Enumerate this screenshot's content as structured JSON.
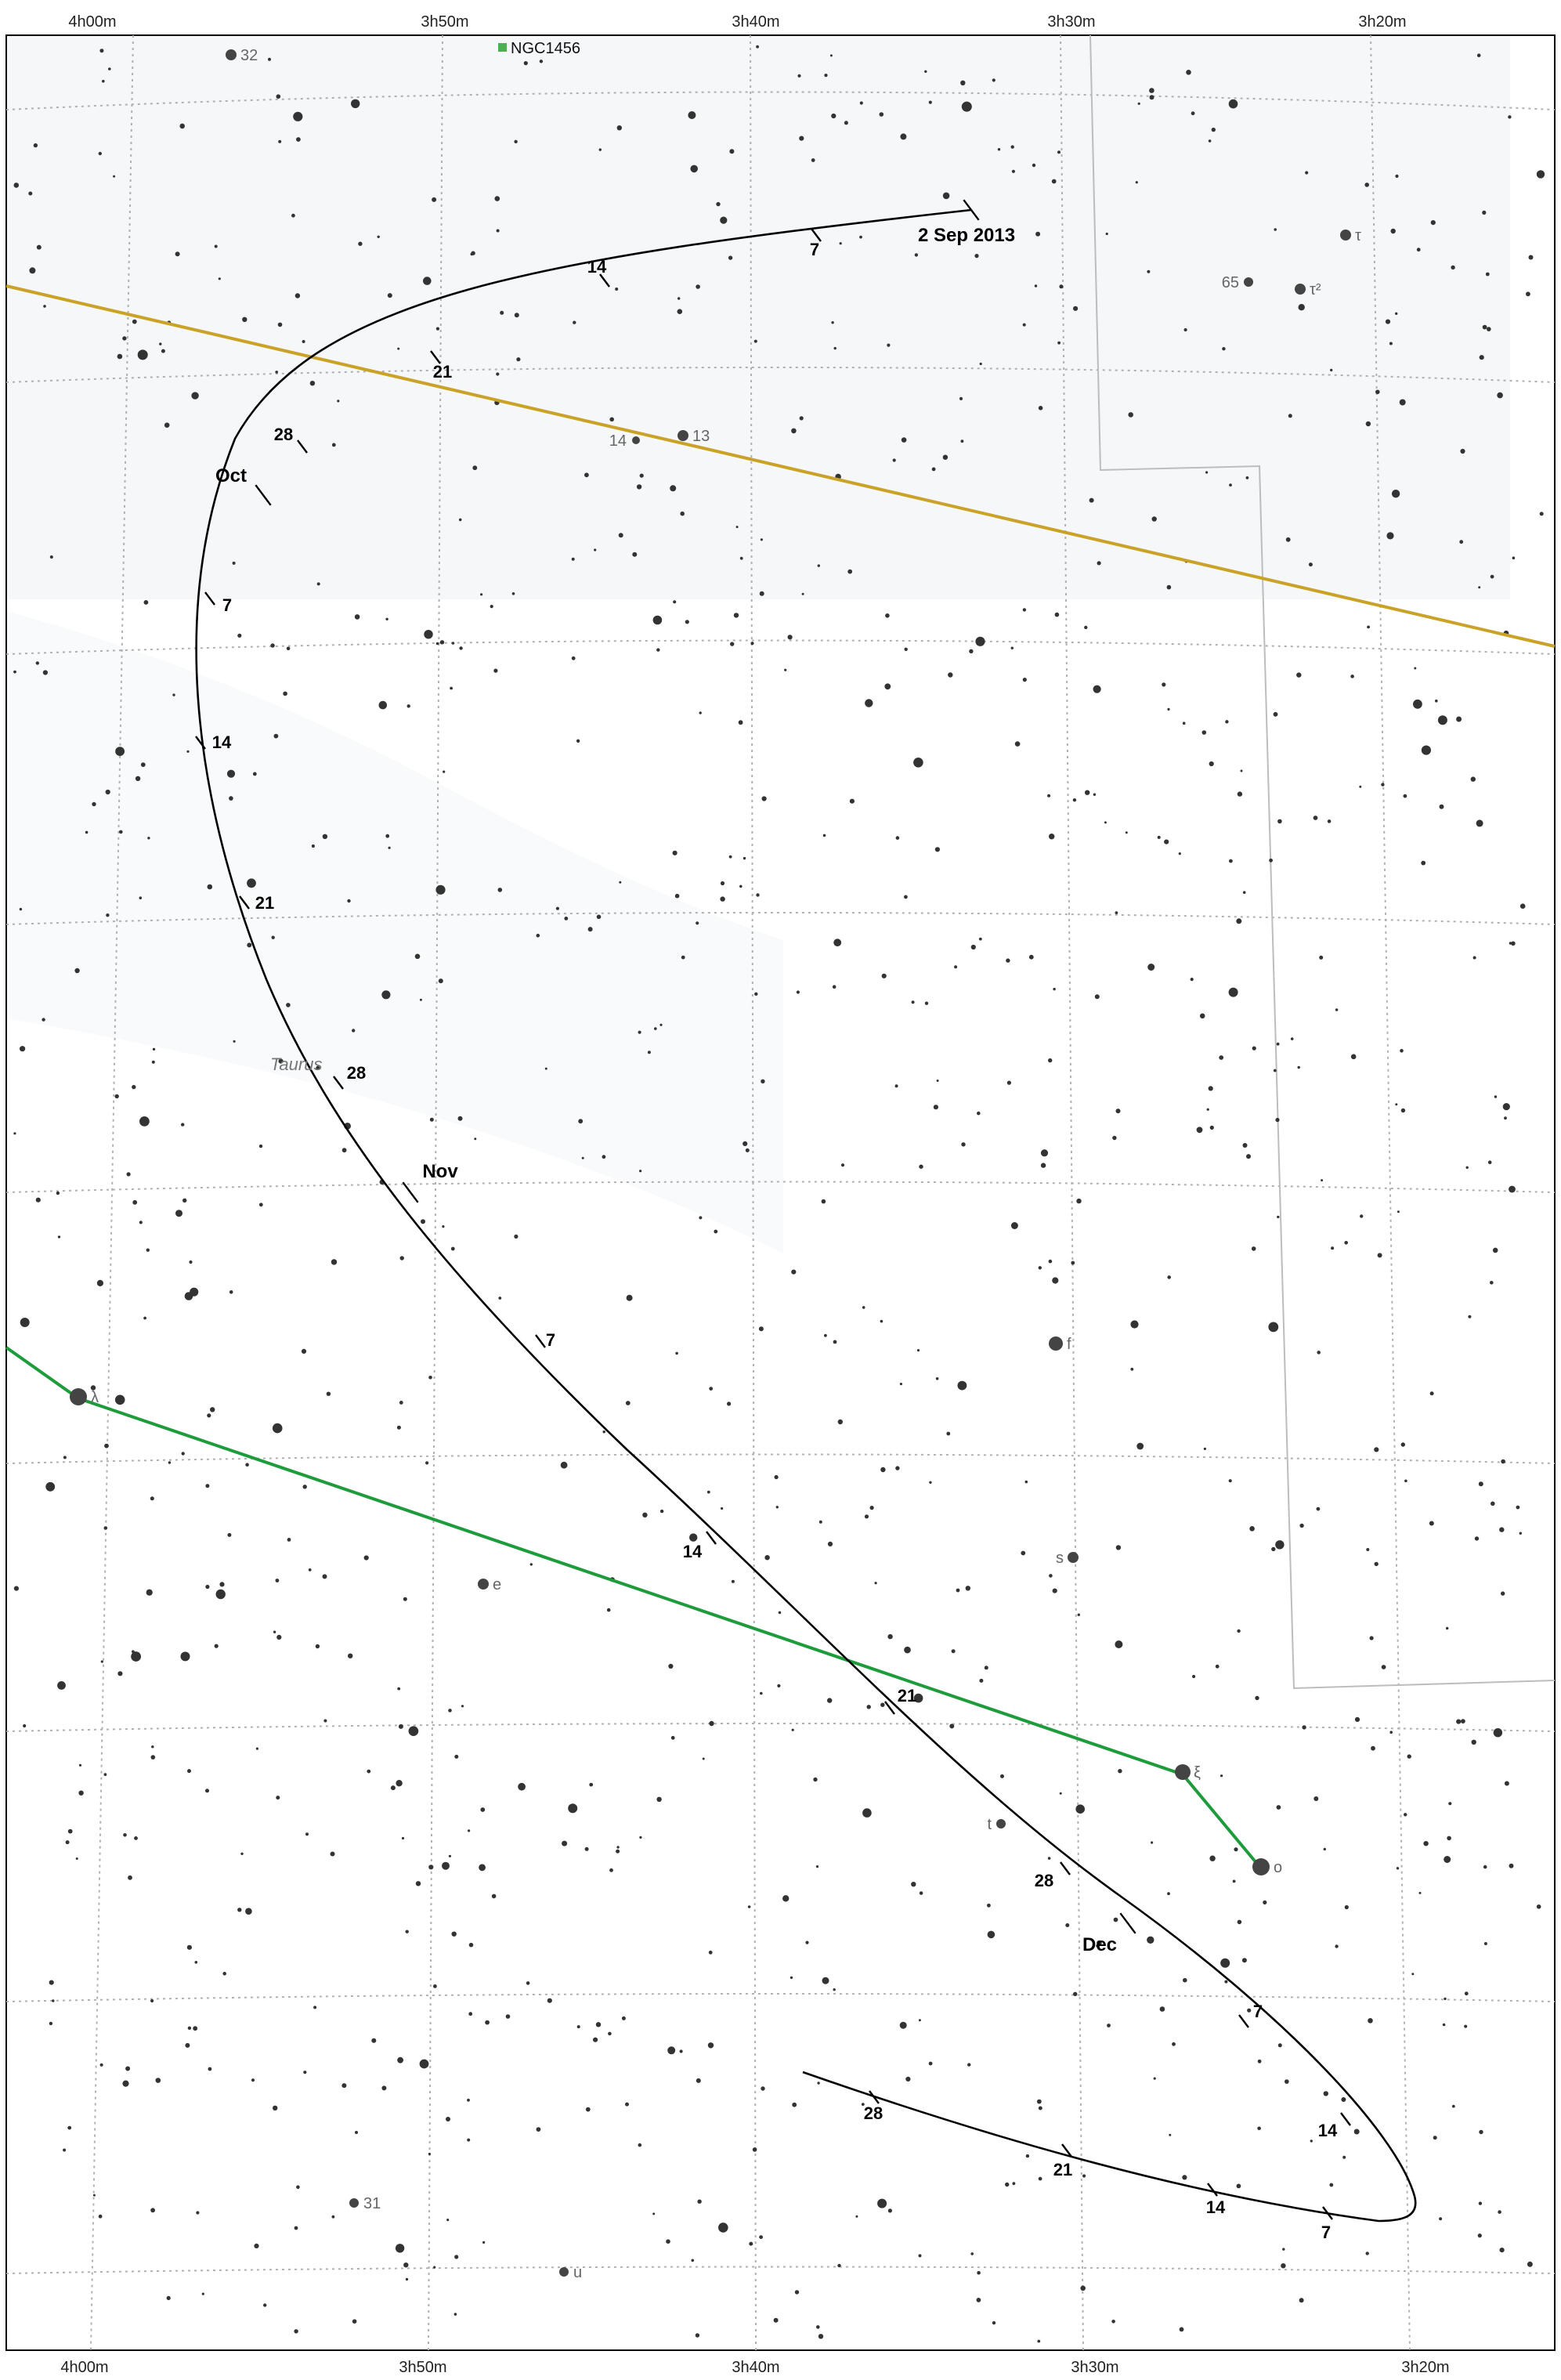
{
  "chart": {
    "ra_labels_top": [
      "4h00m",
      "3h50m",
      "3h40m",
      "3h30m",
      "3h20m"
    ],
    "ra_labels_bottom": [
      "4h00m",
      "3h50m",
      "3h40m",
      "3h30m",
      "3h20m"
    ],
    "constellation": "Taurus",
    "deep_sky": [
      {
        "name": "NGC1456",
        "color": "#4caf50"
      }
    ],
    "named_stars": [
      {
        "label": "32"
      },
      {
        "label": "τ"
      },
      {
        "label": "65"
      },
      {
        "label": "τ²"
      },
      {
        "label": "14"
      },
      {
        "label": "13"
      },
      {
        "label": "f"
      },
      {
        "label": "λ"
      },
      {
        "label": "e"
      },
      {
        "label": "s"
      },
      {
        "label": "ξ"
      },
      {
        "label": "o"
      },
      {
        "label": "t"
      },
      {
        "label": "31"
      },
      {
        "label": "u"
      }
    ],
    "path_labels": [
      {
        "text": "2 Sep 2013",
        "kind": "month"
      },
      {
        "text": "7",
        "kind": "day"
      },
      {
        "text": "14",
        "kind": "day"
      },
      {
        "text": "21",
        "kind": "day"
      },
      {
        "text": "28",
        "kind": "day"
      },
      {
        "text": "Oct",
        "kind": "month"
      },
      {
        "text": "7",
        "kind": "day"
      },
      {
        "text": "14",
        "kind": "day"
      },
      {
        "text": "21",
        "kind": "day"
      },
      {
        "text": "28",
        "kind": "day"
      },
      {
        "text": "Nov",
        "kind": "month"
      },
      {
        "text": "7",
        "kind": "day"
      },
      {
        "text": "14",
        "kind": "day"
      },
      {
        "text": "21",
        "kind": "day"
      },
      {
        "text": "28",
        "kind": "day"
      },
      {
        "text": "Dec",
        "kind": "month"
      },
      {
        "text": "7",
        "kind": "day"
      },
      {
        "text": "14",
        "kind": "day"
      },
      {
        "text": "7",
        "kind": "day"
      },
      {
        "text": "14",
        "kind": "day"
      },
      {
        "text": "21",
        "kind": "day"
      },
      {
        "text": "28",
        "kind": "day"
      }
    ],
    "colors": {
      "ecliptic": "#c9a227",
      "asterism": "#1e9b3a",
      "path": "#000000",
      "grid": "#b0b0b0",
      "boundary": "#bdbdbd",
      "milky_way": "#eef1f4"
    }
  }
}
